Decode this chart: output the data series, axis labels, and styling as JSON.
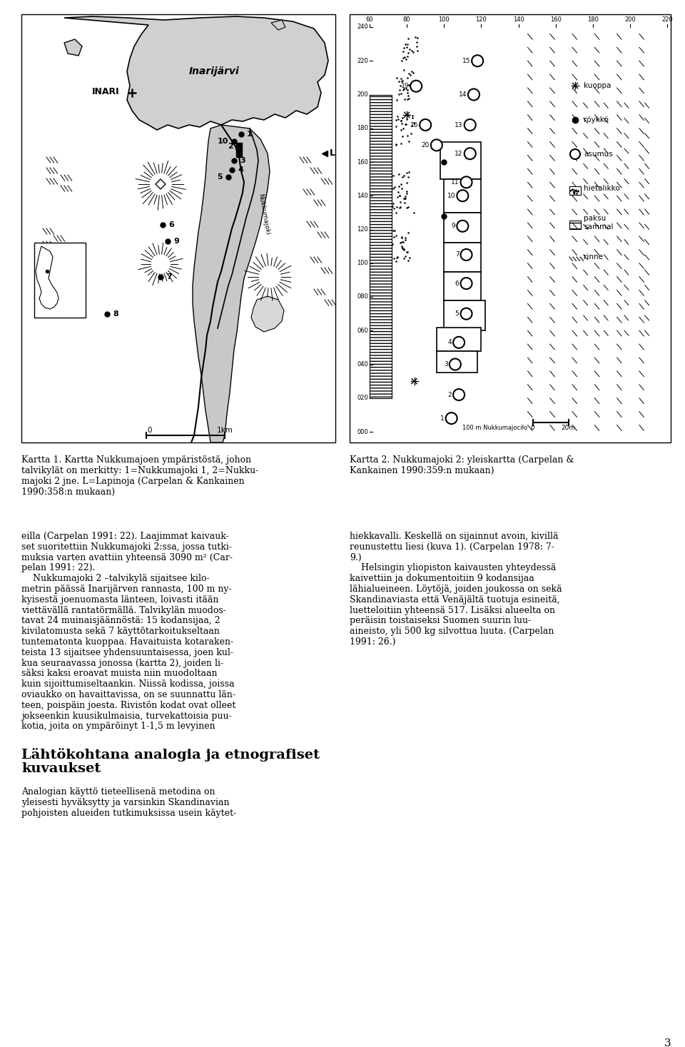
{
  "page_bg": "#ffffff",
  "page_number": "3",
  "map1_caption_lines": [
    "Kartta 1. Kartta Nukkumajoen ympäristöstä, johon",
    "talvikylät on merkitty: 1=Nukkumajoki 1, 2=Nukku-",
    "majoki 2 jne. L=Lapinoja (Carpelan & Kankainen",
    "1990:358:n mukaan)"
  ],
  "map2_caption_lines": [
    "Kartta 2. Nukkumajoki 2: yleiskartta (Carpelan &",
    "Kankainen 1990:359:n mukaan)"
  ],
  "left_col_lines": [
    "eilla (Carpelan 1991: 22). Laajimmat kaivauk-",
    "set suoritettiin Nukkumajoki 2:ssa, jossa tutki-",
    "muksia varten avattiin yhteensä 3090 m² (Car-",
    "pelan 1991: 22).",
    "    Nukkumajoki 2 –talvikylä sijaitsee kilo-",
    "metrin päässä Inarijärven rannasta, 100 m ny-",
    "kyisestä joenuomasta länteen, loivasti itään",
    "viettävällä rantatörmällä. Talvikylän muodos-",
    "tavat 24 muinaisjäännöstä: 15 kodansijaa, 2",
    "kivilatomusta sekä 7 käyttötarkoitukseltaan",
    "tuntematonta kuoppaa. Havaituista kotaraken-",
    "teista 13 sijaitsee yhdensuuntaisessa, joen kul-",
    "kua seuraavassa jonossa (kartta 2), joiden li-",
    "säksi kaksi eroavat muista niin muodoltaan",
    "kuin sijoittumiseltaankin. Niissä kodissa, joissa",
    "oviaukko on havaittavissa, on se suunnattu län-",
    "teen, poispäin joesta. Rivistön kodat ovat olleet",
    "jokseenkin kuusikulmaisia, turvekattoisia puu-",
    "kotia, joita on ympäröinyt 1-1,5 m levyinen"
  ],
  "right_col_lines": [
    "hiekkavalli. Keskellä on sijainnut avoin, kivillä",
    "reunustettu liesi (kuva 1). (Carpelan 1978: 7-",
    "9.)",
    "    Helsingin yliopiston kaivausten yhteydessä",
    "kaivettiin ja dokumentoitiin 9 kodansijaa",
    "lähialueineen. Löytöjä, joiden joukossa on sekä",
    "Skandinaviasta että Venäjältä tuotuja esineitä,",
    "luetteloitiin yhteensä 517. Lisäksi alueelta on",
    "peräisin toistaiseksi Suomen suurin luu-",
    "aineisto, yli 500 kg silvottua luuta. (Carpelan",
    "1991: 26.)"
  ],
  "section_title_line1": "Lähtökohtana analogia ja etnografiset",
  "section_title_line2": "kuvaukset",
  "bottom_lines": [
    "Analogian käyttö tieteellisenä metodina on",
    "yleisesti hyväksytty ja varsinkin Skandinavian",
    "pohjoisten alueiden tutkimuksissa usein käytet-"
  ]
}
